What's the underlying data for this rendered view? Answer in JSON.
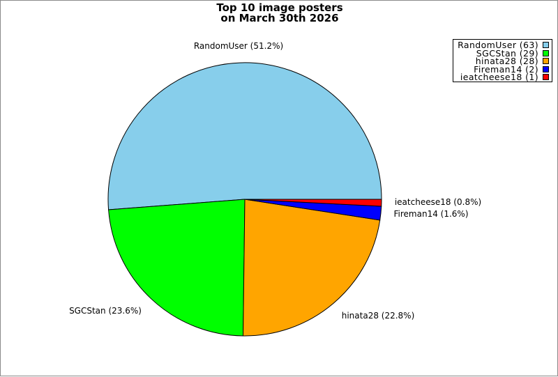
{
  "chart_data": {
    "type": "pie",
    "title_lines": [
      "Top 10 image posters",
      "on March 30th 2026"
    ],
    "slices": [
      {
        "name": "RandomUser",
        "value": 63,
        "percent_label": "RandomUser (51.2%)",
        "legend_label": "RandomUser (63)",
        "color": "#87ceeb"
      },
      {
        "name": "SGCStan",
        "value": 29,
        "percent_label": "SGCStan (23.6%)",
        "legend_label": "SGCStan (29)",
        "color": "#00ff00"
      },
      {
        "name": "hinata28",
        "value": 28,
        "percent_label": "hinata28 (22.8%)",
        "legend_label": "hinata28 (28)",
        "color": "#ffa500"
      },
      {
        "name": "Fireman14",
        "value": 2,
        "percent_label": "Fireman14 (1.6%)",
        "legend_label": "Fireman14 (2)",
        "color": "#0000ff"
      },
      {
        "name": "ieatcheese18",
        "value": 1,
        "percent_label": "ieatcheese18 (0.8%)",
        "legend_label": "ieatcheese18 (1)",
        "color": "#ff0000"
      }
    ],
    "legend_position": "top-right",
    "start": "3 o'clock",
    "direction": "counterclockwise"
  }
}
